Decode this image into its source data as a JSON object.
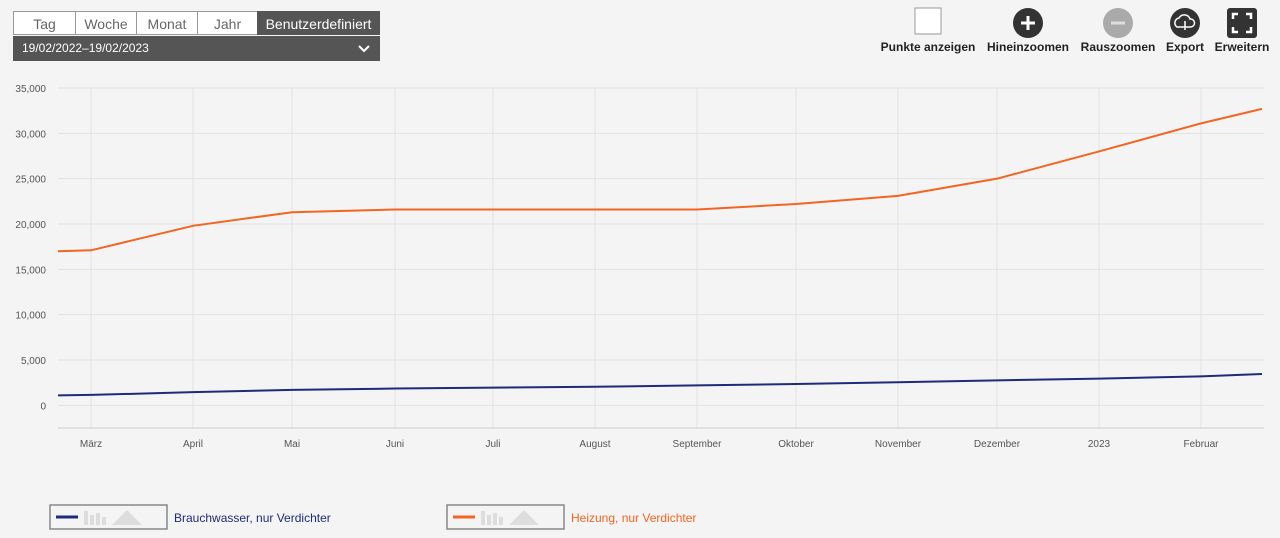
{
  "toolbar": {
    "ranges": [
      "Tag",
      "Woche",
      "Monat",
      "Jahr",
      "Benutzerdefiniert"
    ],
    "date_range": "19/02/2022–19/02/2023",
    "actions": [
      "Punkte anzeigen",
      "Hineinzoomen",
      "Rauszoomen",
      "Export",
      "Erweitern"
    ]
  },
  "chart_data": {
    "type": "line",
    "categories": [
      null,
      "März",
      "April",
      "Mai",
      "Juni",
      "Juli",
      "August",
      "September",
      "Oktober",
      "November",
      "Dezember",
      "2023",
      "Februar",
      null
    ],
    "series": [
      {
        "name": "Brauchwasser, nur Verdichter",
        "color": "#1f2a7a",
        "values": [
          1100,
          1150,
          1450,
          1700,
          1850,
          1950,
          2050,
          2200,
          2350,
          2550,
          2750,
          2950,
          3200,
          3450
        ]
      },
      {
        "name": "Heizung, nur Verdichter",
        "color": "#f26522",
        "values": [
          17000,
          17100,
          19800,
          21300,
          21600,
          21600,
          21600,
          21600,
          22200,
          23100,
          25000,
          28000,
          31100,
          32700
        ]
      }
    ],
    "ylim": [
      -2500,
      35000
    ],
    "yticks": [
      0,
      {
        "value": 5000,
        "label": "5,000"
      },
      {
        "value": 10000,
        "label": "10,000"
      },
      {
        "value": 15000,
        "label": "15,000"
      },
      {
        "value": 20000,
        "label": "20,000"
      },
      {
        "value": 25000,
        "label": "25,000"
      },
      {
        "value": 30000,
        "label": "30,000"
      },
      {
        "value": 35000,
        "label": "35,000"
      }
    ],
    "grid": true
  }
}
